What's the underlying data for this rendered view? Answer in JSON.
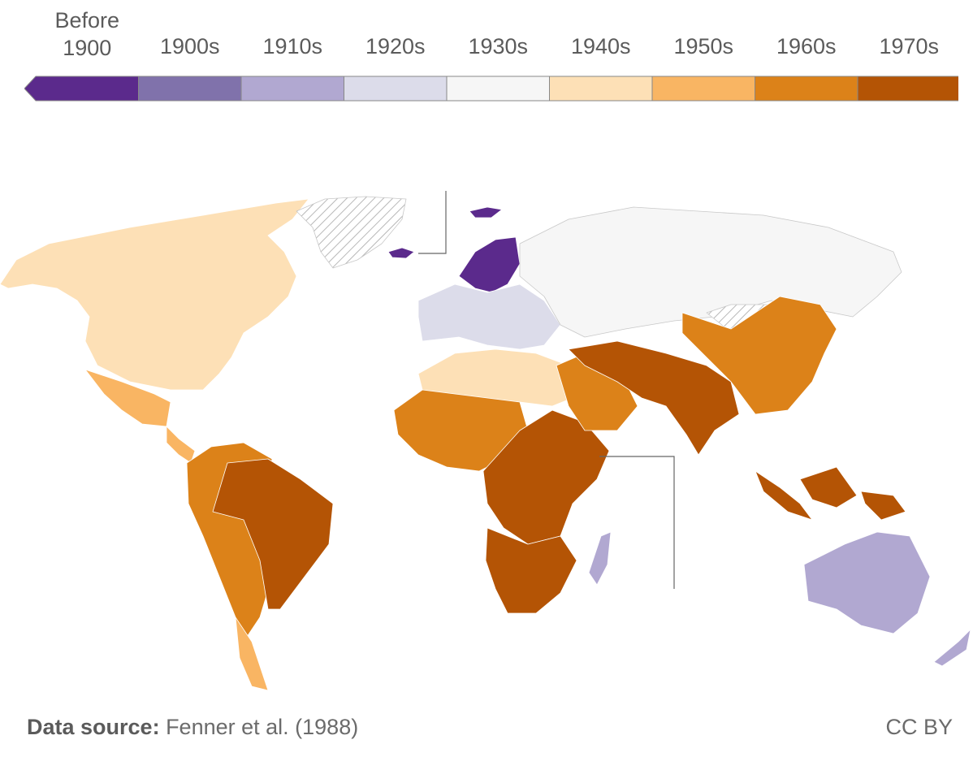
{
  "legend": {
    "bins": [
      {
        "label_line1": "Before",
        "label_line2": "1900",
        "color": "#5b2a8c"
      },
      {
        "label_line1": "",
        "label_line2": "1900s",
        "color": "#8072ab"
      },
      {
        "label_line1": "",
        "label_line2": "1910s",
        "color": "#b1a8d1"
      },
      {
        "label_line1": "",
        "label_line2": "1920s",
        "color": "#dcdcea"
      },
      {
        "label_line1": "",
        "label_line2": "1930s",
        "color": "#f6f6f6"
      },
      {
        "label_line1": "",
        "label_line2": "1940s",
        "color": "#fde0b6"
      },
      {
        "label_line1": "",
        "label_line2": "1950s",
        "color": "#f9b563"
      },
      {
        "label_line1": "",
        "label_line2": "1960s",
        "color": "#dc8219"
      },
      {
        "label_line1": "",
        "label_line2": "1970s",
        "color": "#b45405"
      }
    ],
    "no_data_pattern": "hatched-gray"
  },
  "regions": {
    "north_america": "1940s",
    "greenland": "no-data",
    "central_america": "1950s",
    "mexico": "1950s",
    "south_america_west": "1960s",
    "brazil": "1970s",
    "southern_cone": "1950s",
    "scandinavia": "Before 1900",
    "iceland": "Before 1900",
    "svalbard": "Before 1900",
    "europe": "1920s",
    "russia": "1930s",
    "north_africa": "1940s",
    "west_africa": "1960s",
    "central_east_africa": "1970s",
    "southern_africa": "1970s",
    "madagascar": "1910s",
    "middle_east": "1960s",
    "south_asia": "1970s",
    "china": "1960s",
    "indonesia": "1970s",
    "australia": "1910s",
    "new_zealand": "1910s",
    "mongolia": "no-data"
  },
  "footer": {
    "source_label": "Data source:",
    "source_text": " Fenner et al. (1988)",
    "license": "CC BY"
  }
}
